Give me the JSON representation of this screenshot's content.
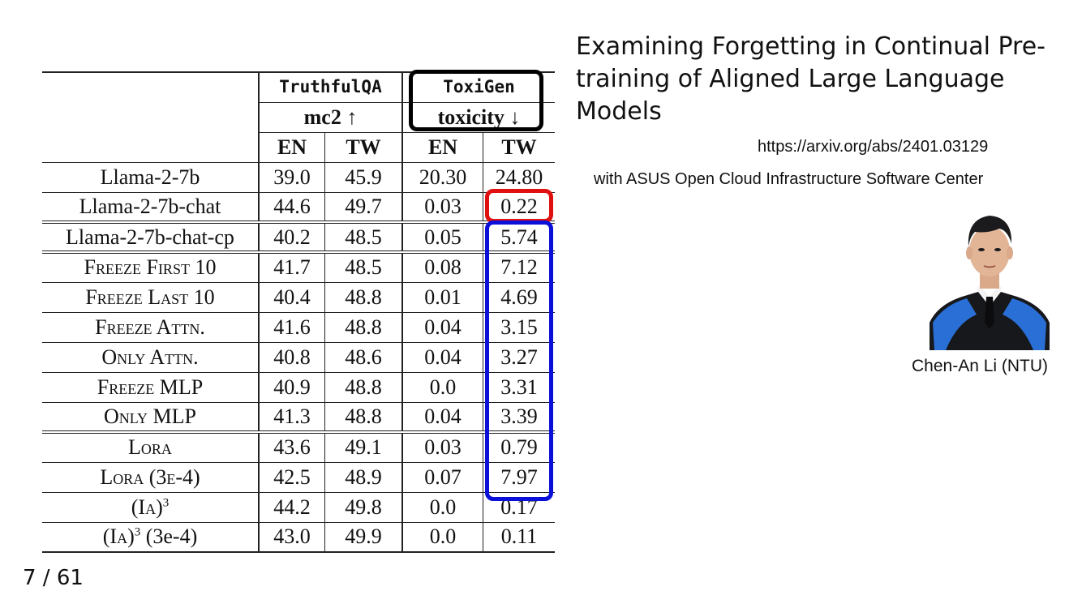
{
  "slide": {
    "title": "Examining Forgetting in Continual Pre-training of Aligned Large Language Models",
    "url": "https://arxiv.org/abs/2401.03129",
    "affiliation": "with ASUS Open Cloud Infrastructure Software Center",
    "person": "Chen-An Li (NTU)",
    "page": "7 / 61"
  },
  "table": {
    "group1": "TruthfulQA",
    "group2": "ToxiGen",
    "metric1": "mc2 ↑",
    "metric2": "toxicity ↓",
    "langs": [
      "EN",
      "TW",
      "EN",
      "TW"
    ],
    "rows": [
      {
        "name": "Llama-2-7b",
        "tqa_en": "39.0",
        "tqa_tw": "45.9",
        "tox_en": "20.30",
        "tox_tw": "24.80"
      },
      {
        "name": "Llama-2-7b-chat",
        "tqa_en": "44.6",
        "tqa_tw": "49.7",
        "tox_en": "0.03",
        "tox_tw": "0.22"
      },
      {
        "name": "Llama-2-7b-chat-cp",
        "tqa_en": "40.2",
        "tqa_tw": "48.5",
        "tox_en": "0.05",
        "tox_tw": "5.74"
      },
      {
        "name": "Freeze First 10",
        "tqa_en": "41.7",
        "tqa_tw": "48.5",
        "tox_en": "0.08",
        "tox_tw": "7.12"
      },
      {
        "name": "Freeze Last 10",
        "tqa_en": "40.4",
        "tqa_tw": "48.8",
        "tox_en": "0.01",
        "tox_tw": "4.69"
      },
      {
        "name": "Freeze Attn.",
        "tqa_en": "41.6",
        "tqa_tw": "48.8",
        "tox_en": "0.04",
        "tox_tw": "3.15"
      },
      {
        "name": "Only Attn.",
        "tqa_en": "40.8",
        "tqa_tw": "48.6",
        "tox_en": "0.04",
        "tox_tw": "3.27"
      },
      {
        "name": "Freeze MLP",
        "tqa_en": "40.9",
        "tqa_tw": "48.8",
        "tox_en": "0.0",
        "tox_tw": "3.31"
      },
      {
        "name": "Only MLP",
        "tqa_en": "41.3",
        "tqa_tw": "48.8",
        "tox_en": "0.04",
        "tox_tw": "3.39"
      },
      {
        "name": "Lora",
        "tqa_en": "43.6",
        "tqa_tw": "49.1",
        "tox_en": "0.03",
        "tox_tw": "0.79"
      },
      {
        "name": "Lora (3e-4)",
        "tqa_en": "42.5",
        "tqa_tw": "48.9",
        "tox_en": "0.07",
        "tox_tw": "7.97"
      },
      {
        "name": "(Ia)",
        "name_sup": "3",
        "name_suffix": "",
        "tqa_en": "44.2",
        "tqa_tw": "49.8",
        "tox_en": "0.0",
        "tox_tw": "0.17"
      },
      {
        "name": "(Ia)",
        "name_sup": "3",
        "name_suffix": " (3e-4)",
        "tqa_en": "43.0",
        "tqa_tw": "49.9",
        "tox_en": "0.0",
        "tox_tw": "0.11"
      }
    ]
  },
  "colors": {
    "highlight_black": "#000000",
    "highlight_red": "#e01010",
    "highlight_blue": "#0a10d8",
    "gown_blue": "#2a6fd6"
  },
  "icons": {
    "photo": "person-portrait-photo"
  }
}
